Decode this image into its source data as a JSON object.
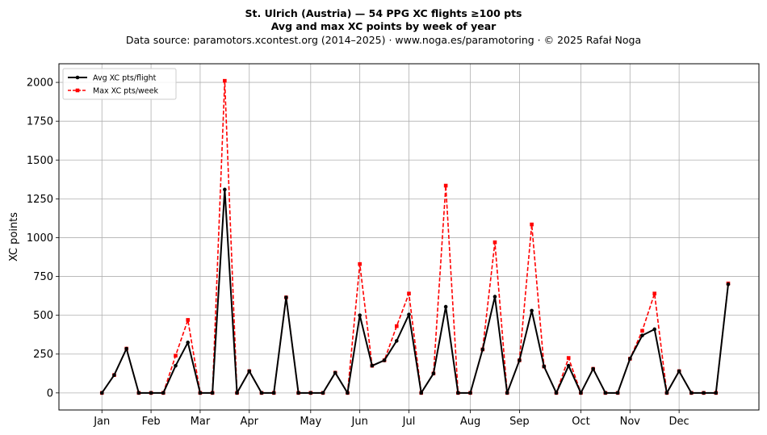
{
  "chart_data": {
    "type": "line",
    "title": "St. Ulrich (Austria)  —  54 PPG XC flights ≥100 pts",
    "subtitle": "Avg and max XC points by week of year",
    "source_note": "Data source: paramotors.xcontest.org (2014–2025)  ·  www.noga.es/paramotoring  ·  © 2025 Rafał Noga",
    "xlabel": "",
    "ylabel": "XC points",
    "x_domain": [
      -2.5,
      54.5
    ],
    "ylim": [
      -110,
      2120
    ],
    "yticks": [
      0,
      250,
      500,
      750,
      1000,
      1250,
      1500,
      1750,
      2000
    ],
    "month_ticks": [
      {
        "label": "Jan",
        "week": 1
      },
      {
        "label": "Feb",
        "week": 5
      },
      {
        "label": "Mar",
        "week": 9
      },
      {
        "label": "Apr",
        "week": 13
      },
      {
        "label": "May",
        "week": 18
      },
      {
        "label": "Jun",
        "week": 22
      },
      {
        "label": "Jul",
        "week": 26
      },
      {
        "label": "Aug",
        "week": 31
      },
      {
        "label": "Sep",
        "week": 35
      },
      {
        "label": "Oct",
        "week": 40
      },
      {
        "label": "Nov",
        "week": 44
      },
      {
        "label": "Dec",
        "week": 48
      }
    ],
    "grid": true,
    "legend_position": "top-left",
    "x": [
      1,
      2,
      3,
      4,
      5,
      6,
      7,
      8,
      9,
      10,
      11,
      12,
      13,
      14,
      15,
      16,
      17,
      18,
      19,
      20,
      21,
      22,
      23,
      24,
      25,
      26,
      27,
      28,
      29,
      30,
      31,
      32,
      33,
      34,
      35,
      36,
      37,
      38,
      39,
      40,
      41,
      42,
      43,
      44,
      45,
      46,
      47,
      48,
      49,
      50,
      51,
      52
    ],
    "series": [
      {
        "name": "Avg XC pts/flight",
        "color": "#000000",
        "style": "solid",
        "marker": "circle",
        "values": [
          0,
          115,
          285,
          0,
          0,
          0,
          175,
          325,
          0,
          0,
          1310,
          0,
          140,
          0,
          0,
          615,
          0,
          0,
          0,
          130,
          0,
          500,
          175,
          210,
          335,
          505,
          0,
          125,
          555,
          0,
          0,
          280,
          620,
          0,
          210,
          530,
          170,
          0,
          175,
          0,
          155,
          0,
          0,
          220,
          370,
          410,
          0,
          140,
          0,
          0,
          0,
          700
        ]
      },
      {
        "name": "Max XC pts/week",
        "color": "#ff0000",
        "style": "dashed",
        "marker": "square",
        "values": [
          0,
          115,
          285,
          0,
          0,
          0,
          240,
          470,
          0,
          0,
          2010,
          0,
          140,
          0,
          0,
          615,
          0,
          0,
          0,
          130,
          0,
          830,
          175,
          210,
          430,
          640,
          0,
          125,
          1335,
          0,
          0,
          280,
          970,
          0,
          210,
          1085,
          170,
          0,
          225,
          0,
          155,
          0,
          0,
          220,
          400,
          640,
          0,
          140,
          0,
          0,
          0,
          705
        ]
      }
    ]
  }
}
